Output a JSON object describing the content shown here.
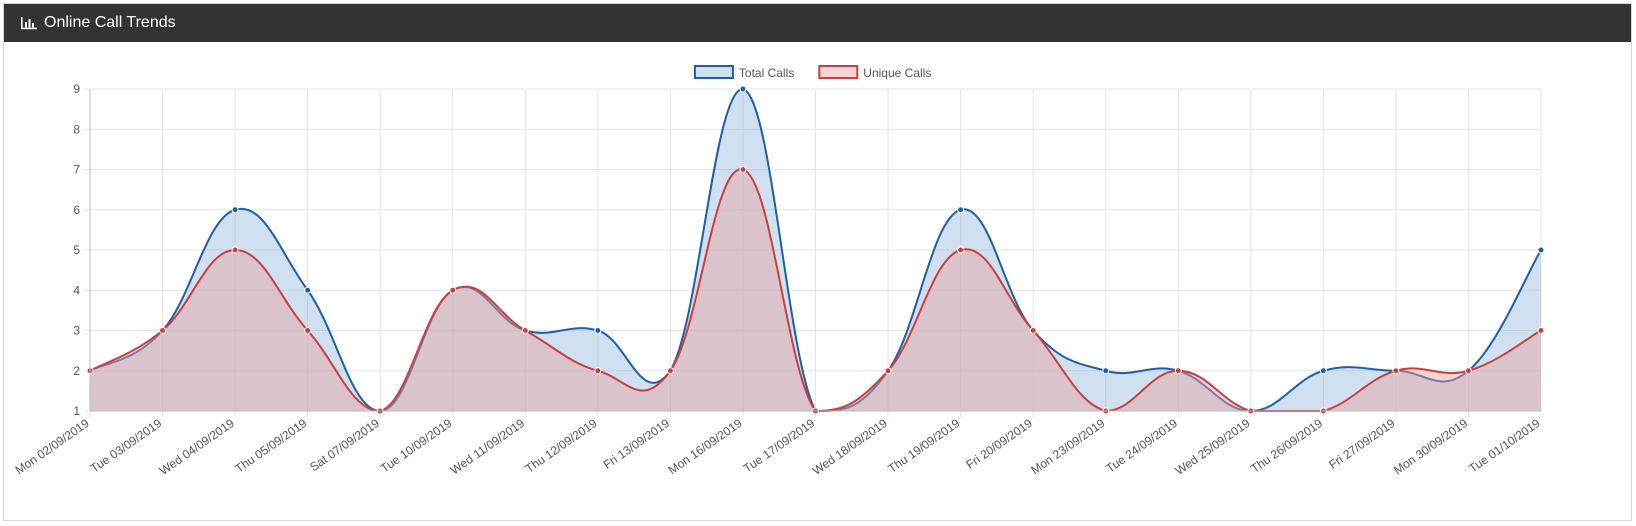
{
  "panel": {
    "title": "Online Call Trends",
    "icon": "bar-chart-icon"
  },
  "chart_data": {
    "type": "area",
    "title": "",
    "xlabel": "",
    "ylabel": "",
    "ylim": [
      1,
      9
    ],
    "y_ticks": [
      1,
      2,
      3,
      4,
      5,
      6,
      7,
      8,
      9
    ],
    "grid": true,
    "legend_position": "top-center",
    "categories": [
      "Mon 02/09/2019",
      "Tue 03/09/2019",
      "Wed 04/09/2019",
      "Thu 05/09/2019",
      "Sat 07/09/2019",
      "Tue 10/09/2019",
      "Wed 11/09/2019",
      "Thu 12/09/2019",
      "Fri 13/09/2019",
      "Mon 16/09/2019",
      "Tue 17/09/2019",
      "Wed 18/09/2019",
      "Thu 19/09/2019",
      "Fri 20/09/2019",
      "Mon 23/09/2019",
      "Tue 24/09/2019",
      "Wed 25/09/2019",
      "Thu 26/09/2019",
      "Fri 27/09/2019",
      "Mon 30/09/2019",
      "Tue 01/10/2019"
    ],
    "series": [
      {
        "name": "Total Calls",
        "color": "#1f5fa6",
        "fill": "rgba(151,187,222,0.45)",
        "values": [
          2,
          3,
          6,
          4,
          1,
          4,
          3,
          3,
          2,
          9,
          1,
          2,
          6,
          3,
          2,
          2,
          1,
          2,
          2,
          2,
          5
        ]
      },
      {
        "name": "Unique Calls",
        "color": "#c9403d",
        "fill": "rgba(232,160,160,0.45)",
        "values": [
          2,
          3,
          5,
          3,
          1,
          4,
          3,
          2,
          2,
          7,
          1,
          2,
          5,
          3,
          1,
          2,
          1,
          1,
          2,
          2,
          3
        ]
      }
    ]
  }
}
